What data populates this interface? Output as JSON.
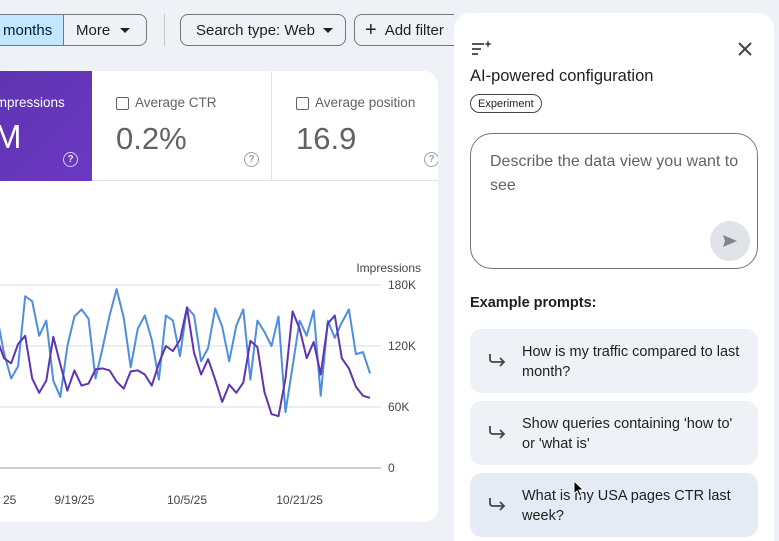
{
  "filters": {
    "date_range_label": "months",
    "more_label": "More",
    "search_type_label": "Search type: Web",
    "add_filter_label": "Add filter"
  },
  "metrics": {
    "impressions": {
      "label": "Impressions",
      "value": "M"
    },
    "ctr": {
      "label": "Average CTR",
      "value": "0.2%"
    },
    "position": {
      "label": "Average position",
      "value": "16.9"
    }
  },
  "chart_data": {
    "type": "line",
    "ylabel": "Impressions",
    "ylim": [
      0,
      180000
    ],
    "yticks": [
      {
        "value": 180000,
        "label": "180K"
      },
      {
        "value": 120000,
        "label": "120K"
      },
      {
        "value": 60000,
        "label": "60K"
      },
      {
        "value": 0,
        "label": "0"
      }
    ],
    "xticks": [
      {
        "index": 0,
        "label": "25"
      },
      {
        "index": 11,
        "label": "9/19/25"
      },
      {
        "index": 27,
        "label": "10/5/25"
      },
      {
        "index": 43,
        "label": "10/21/25"
      }
    ],
    "colors": [
      "#4e8ee0",
      "#5e35b1"
    ],
    "series": [
      {
        "values": [
          149000,
          113000,
          88000,
          100000,
          169000,
          164000,
          130000,
          145000,
          86000,
          70000,
          120000,
          149000,
          156000,
          147000,
          88000,
          118000,
          150000,
          176000,
          148000,
          99000,
          137000,
          150000,
          126000,
          87000,
          150000,
          145000,
          110000,
          158000,
          150000,
          105000,
          118000,
          157000,
          139000,
          105000,
          140000,
          156000,
          87000,
          145000,
          134000,
          120000,
          149000,
          55000,
          100000,
          145000,
          130000,
          155000,
          71000,
          145000,
          128000,
          143000,
          156000,
          112000,
          114000,
          93000
        ]
      },
      {
        "values": [
          127000,
          108000,
          103000,
          122000,
          130000,
          88000,
          74000,
          86000,
          129000,
          102000,
          76000,
          96000,
          81000,
          83000,
          97000,
          98000,
          96000,
          85000,
          78000,
          95000,
          96000,
          92000,
          81000,
          103000,
          120000,
          115000,
          126000,
          158000,
          113000,
          92000,
          107000,
          87000,
          65000,
          82000,
          74000,
          84000,
          125000,
          119000,
          75000,
          53000,
          51000,
          88000,
          154000,
          137000,
          108000,
          124000,
          92000,
          142000,
          150000,
          108000,
          98000,
          80000,
          71000,
          69000
        ]
      }
    ]
  },
  "panel": {
    "title": "AI-powered configuration",
    "badge": "Experiment",
    "prompt_placeholder": "Describe the data view you want to see",
    "examples_heading": "Example prompts:",
    "examples": [
      {
        "text": "How is my traffic compared to last month?"
      },
      {
        "text": "Show queries containing 'how to' or 'what is'"
      },
      {
        "text": "What is my USA pages CTR last week?"
      }
    ]
  }
}
